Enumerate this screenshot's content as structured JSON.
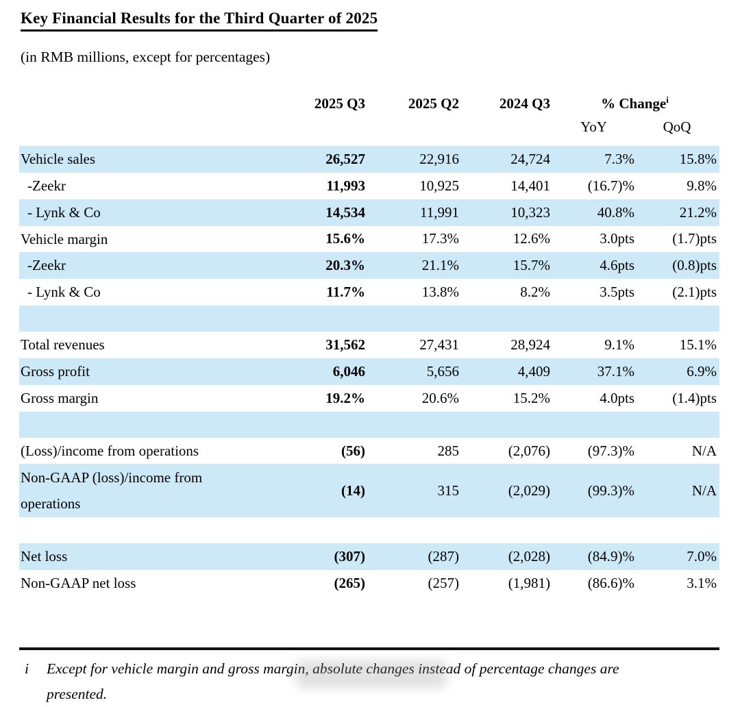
{
  "page": {
    "title": "Key Financial Results for the Third Quarter of 2025",
    "subtitle": "(in RMB millions, except for percentages)"
  },
  "table": {
    "period_headers": [
      "2025 Q3",
      "2025 Q2",
      "2024 Q3"
    ],
    "change_header": {
      "label": "% Change",
      "superscript": "i",
      "sub_columns": [
        "YoY",
        "QoQ"
      ]
    },
    "rows": [
      {
        "label": "Vehicle sales",
        "indent": false,
        "bg": "blue",
        "values": [
          "26,527",
          "22,916",
          "24,724",
          "7.3%",
          "15.8%"
        ]
      },
      {
        "label": "-Zeekr",
        "indent": true,
        "bg": "white",
        "values": [
          "11,993",
          "10,925",
          "14,401",
          "(16.7)%",
          "9.8%"
        ]
      },
      {
        "label": "- Lynk & Co",
        "indent": true,
        "bg": "blue",
        "values": [
          "14,534",
          "11,991",
          "10,323",
          "40.8%",
          "21.2%"
        ]
      },
      {
        "label": "Vehicle margin",
        "indent": false,
        "bg": "white",
        "values": [
          "15.6%",
          "17.3%",
          "12.6%",
          "3.0pts",
          "(1.7)pts"
        ]
      },
      {
        "label": "-Zeekr",
        "indent": true,
        "bg": "blue",
        "values": [
          "20.3%",
          "21.1%",
          "15.7%",
          "4.6pts",
          "(0.8)pts"
        ]
      },
      {
        "label": "- Lynk & Co",
        "indent": true,
        "bg": "white",
        "values": [
          "11.7%",
          "13.8%",
          "8.2%",
          "3.5pts",
          "(2.1)pts"
        ]
      },
      {
        "spacer": true,
        "bg": "blue"
      },
      {
        "label": "Total revenues",
        "indent": false,
        "bg": "white",
        "values": [
          "31,562",
          "27,431",
          "28,924",
          "9.1%",
          "15.1%"
        ]
      },
      {
        "label": "Gross profit",
        "indent": false,
        "bg": "blue",
        "values": [
          "6,046",
          "5,656",
          "4,409",
          "37.1%",
          "6.9%"
        ]
      },
      {
        "label": "Gross margin",
        "indent": false,
        "bg": "white",
        "values": [
          "19.2%",
          "20.6%",
          "15.2%",
          "4.0pts",
          "(1.4)pts"
        ]
      },
      {
        "spacer": true,
        "bg": "blue"
      },
      {
        "label": "(Loss)/income from operations",
        "indent": false,
        "bg": "white",
        "values": [
          "(56)",
          "285",
          "(2,076)",
          "(97.3)%",
          "N/A"
        ]
      },
      {
        "label": "Non-GAAP (loss)/income from\noperations",
        "indent": false,
        "bg": "blue",
        "tall": true,
        "values": [
          "(14)",
          "315",
          "(2,029)",
          "(99.3)%",
          "N/A"
        ]
      },
      {
        "spacer": true,
        "bg": "white"
      },
      {
        "label": "Net loss",
        "indent": false,
        "bg": "blue",
        "values": [
          "(307)",
          "(287)",
          "(2,028)",
          "(84.9)%",
          "7.0%"
        ]
      },
      {
        "label": "Non-GAAP net loss",
        "indent": false,
        "bg": "white",
        "values": [
          "(265)",
          "(257)",
          "(1,981)",
          "(86.6)%",
          "3.1%"
        ]
      }
    ]
  },
  "footnote": {
    "marker": "i",
    "text": "Except for vehicle margin and gross margin, absolute changes instead of percentage changes are\npresented."
  },
  "colors": {
    "row_highlight": "#cde8f6",
    "text": "#000000",
    "rule": "#111111",
    "background": "#ffffff"
  }
}
